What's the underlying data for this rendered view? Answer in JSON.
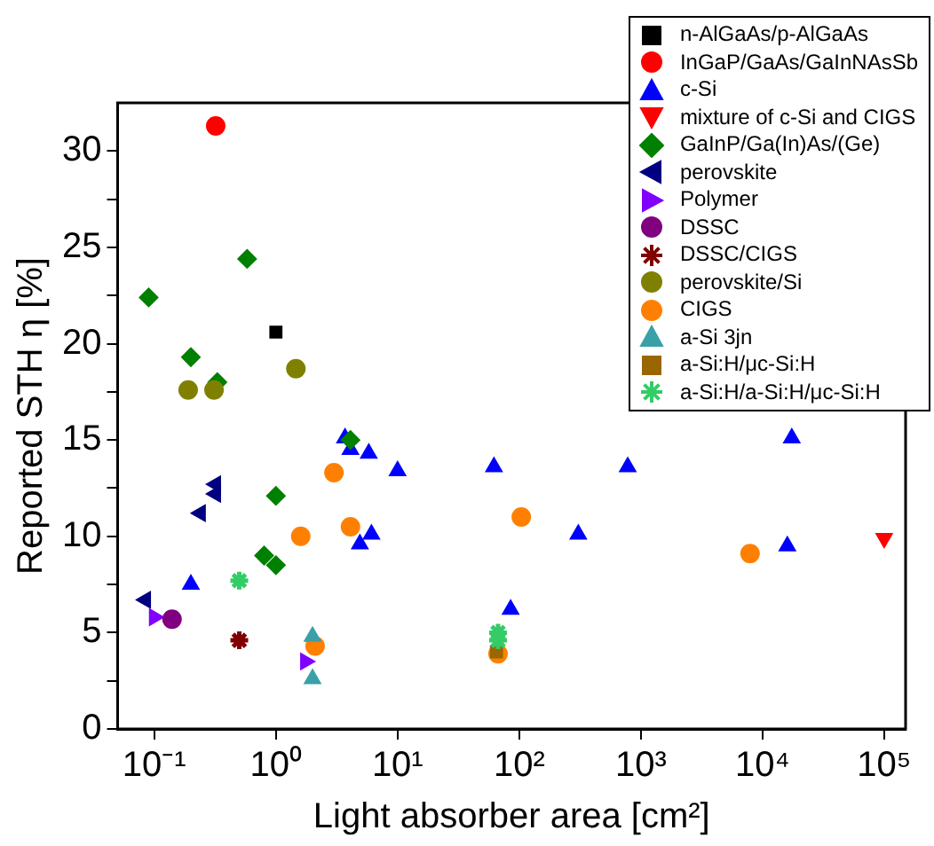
{
  "chart_data": {
    "type": "scatter",
    "xlabel": "Light absorber area [cm²]",
    "ylabel": "Reported STH η [%]",
    "log": "x",
    "grid": false,
    "legend": "top right",
    "xlim": [
      0.05,
      150000
    ],
    "xticks": [
      {
        "value": 0.1,
        "label": "10⁻¹"
      },
      {
        "value": 1,
        "label": "10⁰"
      },
      {
        "value": 10,
        "label": "10¹"
      },
      {
        "value": 100,
        "label": "10²"
      },
      {
        "value": 1000,
        "label": "10³"
      },
      {
        "value": 10000,
        "label": "10⁴"
      },
      {
        "value": 100000,
        "label": "10⁵"
      }
    ],
    "ylim": [
      0,
      32.5
    ],
    "yticks": [
      0,
      {
        "value": 2.5,
        "label": null
      },
      5,
      {
        "value": 7.5,
        "label": null
      },
      10,
      {
        "value": 12.5,
        "label": null
      },
      15,
      {
        "value": 17.5,
        "label": null
      },
      20,
      {
        "value": 22.5,
        "label": null
      },
      25,
      {
        "value": 27.5,
        "label": null
      },
      30
    ],
    "series": [
      {
        "name": "n-AlGaAs/p-AlGaAs",
        "color": "#000000",
        "marker": "square",
        "x": [
          1.0
        ],
        "values": [
          20.6
        ]
      },
      {
        "name": "InGaP/GaAs/GaInNAsSb",
        "color": "#ff0000",
        "marker": "circle",
        "x": [
          0.32
        ],
        "values": [
          31.3
        ]
      },
      {
        "name": "c-Si",
        "color": "#0000ff",
        "marker": "triangle",
        "x": [
          0.2,
          3.7,
          4.1,
          5.8,
          10,
          4.9,
          6.1,
          62,
          85,
          306,
          780,
          17400,
          16000
        ],
        "values": [
          7.5,
          15.1,
          14.5,
          14.3,
          13.4,
          9.6,
          10.1,
          13.6,
          6.2,
          10.1,
          13.6,
          15.1,
          9.5
        ]
      },
      {
        "name": "mixture of c-Si and CIGS",
        "color": "#ff0000",
        "marker": "triangle-down",
        "x": [
          100000
        ],
        "values": [
          9.9
        ]
      },
      {
        "name": "GaInP/Ga(In)As/(Ge)",
        "color": "#008000",
        "marker": "diamond",
        "x": [
          0.09,
          0.58,
          0.2,
          0.33,
          4.1,
          1.0,
          0.8,
          1.0
        ],
        "values": [
          22.4,
          24.4,
          19.3,
          18.0,
          15.0,
          12.1,
          9.0,
          8.5
        ]
      },
      {
        "name": "perovskite",
        "color": "#000080",
        "marker": "triangle-left",
        "x": [
          0.085,
          0.24,
          0.32,
          0.32
        ],
        "values": [
          6.7,
          11.2,
          12.2,
          12.7
        ]
      },
      {
        "name": "Polymer",
        "color": "#8000ff",
        "marker": "triangle-right",
        "x": [
          0.1,
          1.75
        ],
        "values": [
          5.8,
          3.5
        ]
      },
      {
        "name": "DSSC",
        "color": "#800080",
        "marker": "circle",
        "x": [
          0.14
        ],
        "values": [
          5.7
        ]
      },
      {
        "name": "DSSC/CIGS",
        "color": "#800000",
        "marker": "cross",
        "x": [
          0.5
        ],
        "values": [
          4.6
        ]
      },
      {
        "name": "perovskite/Si",
        "color": "#808000",
        "marker": "circle",
        "x": [
          0.19,
          0.31,
          1.46
        ],
        "values": [
          17.6,
          17.6,
          18.7
        ]
      },
      {
        "name": "CIGS",
        "color": "#ff8000",
        "marker": "circle",
        "x": [
          3.0,
          1.6,
          4.1,
          104,
          7900,
          2.1,
          67
        ],
        "values": [
          13.3,
          10.0,
          10.5,
          11.0,
          9.1,
          4.3,
          3.9
        ]
      },
      {
        "name": "a-Si 3jn",
        "color": "#3aa0a8",
        "marker": "triangle",
        "x": [
          2.0,
          2.0
        ],
        "values": [
          4.8,
          2.6
        ]
      },
      {
        "name": "a-Si:H/μc-Si:H",
        "color": "#996600",
        "marker": "square",
        "x": [
          65
        ],
        "values": [
          4.0
        ]
      },
      {
        "name": "a-Si:H/a-Si:H/μc-Si:H",
        "color": "#33cc66",
        "marker": "cross",
        "x": [
          0.5,
          67,
          67
        ],
        "values": [
          7.7,
          5.0,
          4.6
        ]
      }
    ]
  }
}
